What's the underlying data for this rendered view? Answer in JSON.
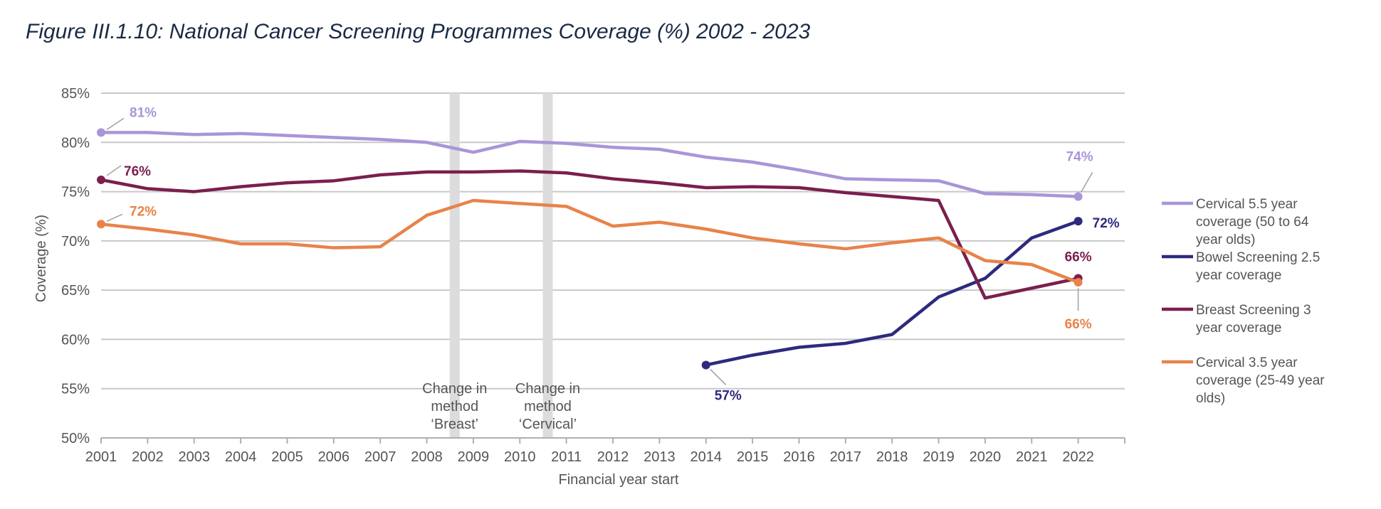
{
  "figure_title": "Figure III.1.10: National Cancer Screening Programmes Coverage (%) 2002 - 2023",
  "chart_data": {
    "type": "line",
    "title": "Figure III.1.10: National Cancer Screening Programmes Coverage (%) 2002 - 2023",
    "xlabel": "Financial year start",
    "ylabel": "Coverage (%)",
    "x": [
      2001,
      2002,
      2003,
      2004,
      2005,
      2006,
      2007,
      2008,
      2009,
      2010,
      2011,
      2012,
      2013,
      2014,
      2015,
      2016,
      2017,
      2018,
      2019,
      2020,
      2021,
      2022
    ],
    "xlim": [
      2001,
      2023
    ],
    "ylim": [
      50,
      85
    ],
    "yticks": [
      50,
      55,
      60,
      65,
      70,
      75,
      80,
      85
    ],
    "ytick_labels": [
      "50%",
      "55%",
      "60%",
      "65%",
      "70%",
      "75%",
      "80%",
      "85%"
    ],
    "grid": true,
    "legend_position": "right",
    "series": [
      {
        "name": "Cervical 5.5 year coverage (50 to 64 year olds)",
        "legend_lines": [
          "Cervical 5.5 year",
          "coverage (50 to 64",
          "year olds)"
        ],
        "color": "#a896d8",
        "x": [
          2001,
          2002,
          2003,
          2004,
          2005,
          2006,
          2007,
          2008,
          2009,
          2010,
          2011,
          2012,
          2013,
          2014,
          2015,
          2016,
          2017,
          2018,
          2019,
          2020,
          2021,
          2022
        ],
        "values": [
          81.0,
          81.0,
          80.8,
          80.9,
          80.7,
          80.5,
          80.3,
          80.0,
          79.0,
          80.1,
          79.9,
          79.5,
          79.3,
          78.5,
          78.0,
          77.2,
          76.3,
          76.2,
          76.1,
          74.8,
          74.7,
          74.5
        ],
        "labels": [
          {
            "x": 2001,
            "text": "81%"
          },
          {
            "x": 2022,
            "text": "74%"
          }
        ]
      },
      {
        "name": "Bowel Screening 2.5 year coverage",
        "legend_lines": [
          "Bowel Screening 2.5",
          "year coverage"
        ],
        "color": "#2e2a7e",
        "x": [
          2014,
          2015,
          2016,
          2017,
          2018,
          2019,
          2020,
          2021,
          2022
        ],
        "values": [
          57.4,
          58.4,
          59.2,
          59.6,
          60.5,
          64.3,
          66.2,
          70.3,
          72.0
        ],
        "labels": [
          {
            "x": 2014,
            "text": "57%"
          },
          {
            "x": 2022,
            "text": "72%"
          }
        ]
      },
      {
        "name": "Breast Screening 3 year coverage",
        "legend_lines": [
          "Breast Screening 3",
          "year coverage"
        ],
        "color": "#7a1f4e",
        "x": [
          2001,
          2002,
          2003,
          2004,
          2005,
          2006,
          2007,
          2008,
          2009,
          2010,
          2011,
          2012,
          2013,
          2014,
          2015,
          2016,
          2017,
          2018,
          2019,
          2020,
          2021,
          2022
        ],
        "values": [
          76.2,
          75.3,
          75.0,
          75.5,
          75.9,
          76.1,
          76.7,
          77.0,
          77.0,
          77.1,
          76.9,
          76.3,
          75.9,
          75.4,
          75.5,
          75.4,
          74.9,
          74.5,
          74.1,
          64.2,
          65.2,
          66.2
        ],
        "labels": [
          {
            "x": 2001,
            "text": "76%"
          },
          {
            "x": 2022,
            "text": "66%"
          }
        ]
      },
      {
        "name": "Cervical 3.5 year coverage (25-49 year olds)",
        "legend_lines": [
          "Cervical 3.5 year",
          "coverage (25-49 year",
          "olds)"
        ],
        "color": "#e8834a",
        "x": [
          2001,
          2002,
          2003,
          2004,
          2005,
          2006,
          2007,
          2008,
          2009,
          2010,
          2011,
          2012,
          2013,
          2014,
          2015,
          2016,
          2017,
          2018,
          2019,
          2020,
          2021,
          2022
        ],
        "values": [
          71.7,
          71.2,
          70.6,
          69.7,
          69.7,
          69.3,
          69.4,
          72.6,
          74.1,
          73.8,
          73.5,
          71.5,
          71.9,
          71.2,
          70.3,
          69.7,
          69.2,
          69.8,
          70.3,
          68.0,
          67.6,
          65.8
        ],
        "labels": [
          {
            "x": 2001,
            "text": "72%"
          },
          {
            "x": 2022,
            "text": "66%"
          }
        ]
      }
    ],
    "annotations": [
      {
        "x": 2008.6,
        "lines": [
          "Change in",
          "method",
          "‘Breast’"
        ]
      },
      {
        "x": 2010.6,
        "lines": [
          "Change in",
          "method",
          "‘Cervical’"
        ]
      }
    ]
  }
}
